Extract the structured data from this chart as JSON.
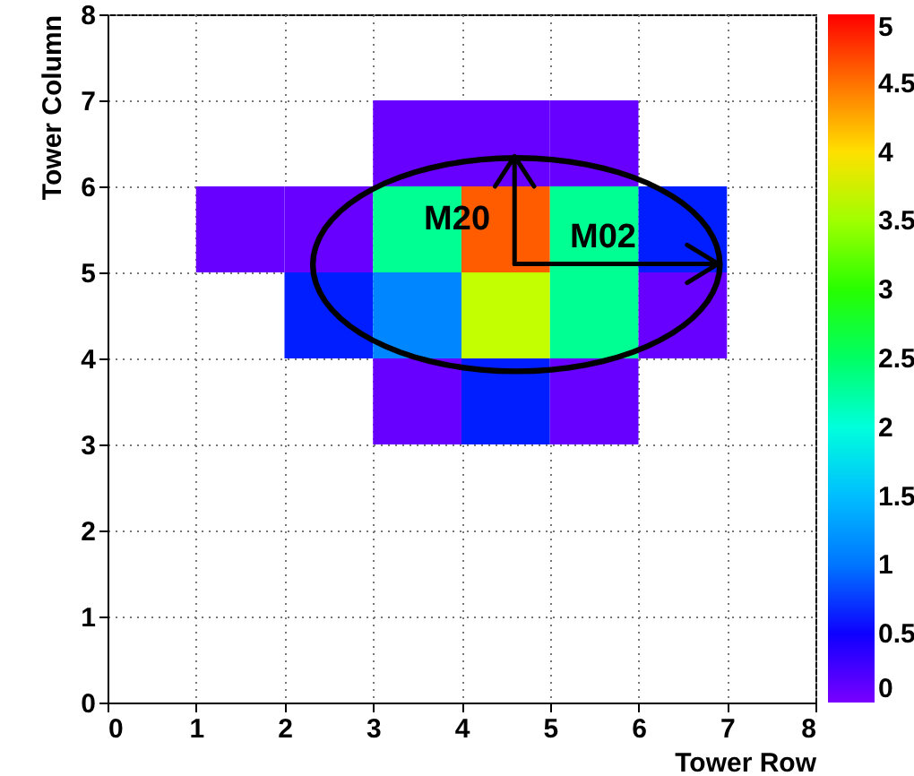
{
  "chart_data": {
    "type": "heatmap",
    "xlabel": "Tower Row",
    "ylabel": "Tower Column",
    "xlim": [
      0,
      8
    ],
    "xticks": [
      0,
      1,
      2,
      3,
      4,
      5,
      6,
      7,
      8
    ],
    "ylim": [
      0,
      8
    ],
    "yticks": [
      0,
      1,
      2,
      3,
      4,
      5,
      6,
      7,
      8
    ],
    "x": [
      1.5,
      2.5,
      3.5,
      4.5,
      5.5,
      6.5
    ],
    "y": [
      6.5,
      5.5,
      4.5,
      3.5
    ],
    "cells": [
      [
        null,
        null,
        0.1,
        0.1,
        0.1,
        null
      ],
      [
        0.1,
        0.1,
        2.3,
        4.6,
        2.3,
        0.6
      ],
      [
        null,
        0.6,
        1.1,
        3.6,
        2.3,
        0.1
      ],
      [
        null,
        null,
        0.1,
        0.6,
        0.1,
        null
      ]
    ],
    "clim": [
      0,
      5
    ],
    "cticks": [
      0,
      0.5,
      1,
      1.5,
      2,
      2.5,
      3,
      3.5,
      4,
      4.5,
      5
    ],
    "grid": true,
    "annotations": [
      "M20",
      "M02"
    ]
  }
}
